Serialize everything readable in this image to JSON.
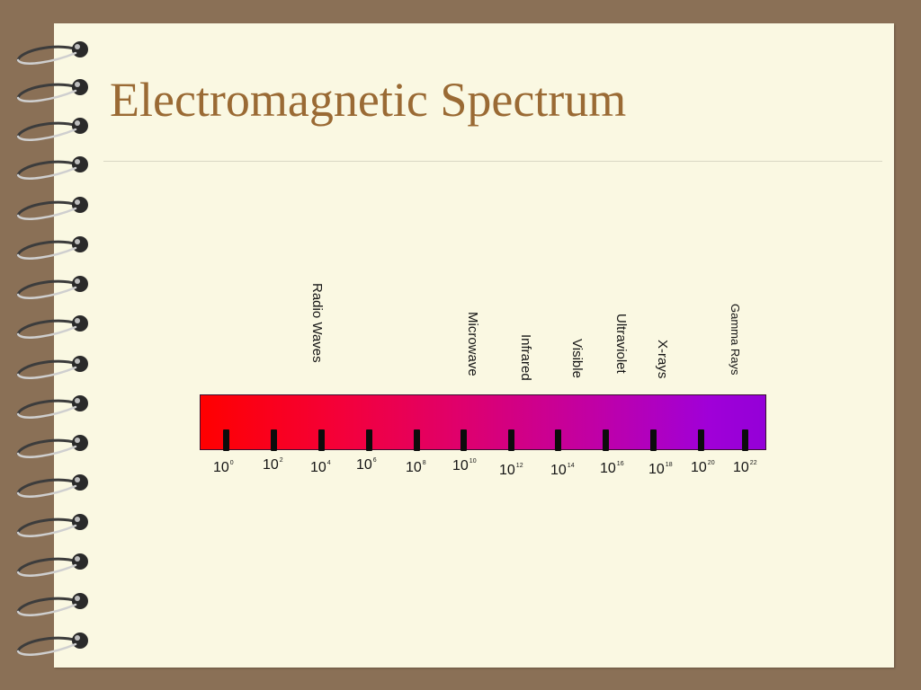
{
  "slide": {
    "title": "Electromagnetic Spectrum"
  },
  "colors": {
    "frame": "#8a7056",
    "paper": "#faf8e2",
    "title": "#9a6a34",
    "gradient_start": "#ff0000",
    "gradient_end": "#9400d8"
  },
  "diagram": {
    "bands": [
      "Radio Waves",
      "Microwave",
      "Infrared",
      "Visible",
      "Ultraviolet",
      "X-rays",
      "Gamma Rays"
    ],
    "scale_labels": [
      {
        "base": "10",
        "exp": "0"
      },
      {
        "base": "10",
        "exp": "2"
      },
      {
        "base": "10",
        "exp": "4"
      },
      {
        "base": "10",
        "exp": "6"
      },
      {
        "base": "10",
        "exp": "8"
      },
      {
        "base": "10",
        "exp": "10"
      },
      {
        "base": "10",
        "exp": "12"
      },
      {
        "base": "10",
        "exp": "14"
      },
      {
        "base": "10",
        "exp": "16"
      },
      {
        "base": "10",
        "exp": "18"
      },
      {
        "base": "10",
        "exp": "20"
      },
      {
        "base": "10",
        "exp": "22"
      }
    ]
  }
}
